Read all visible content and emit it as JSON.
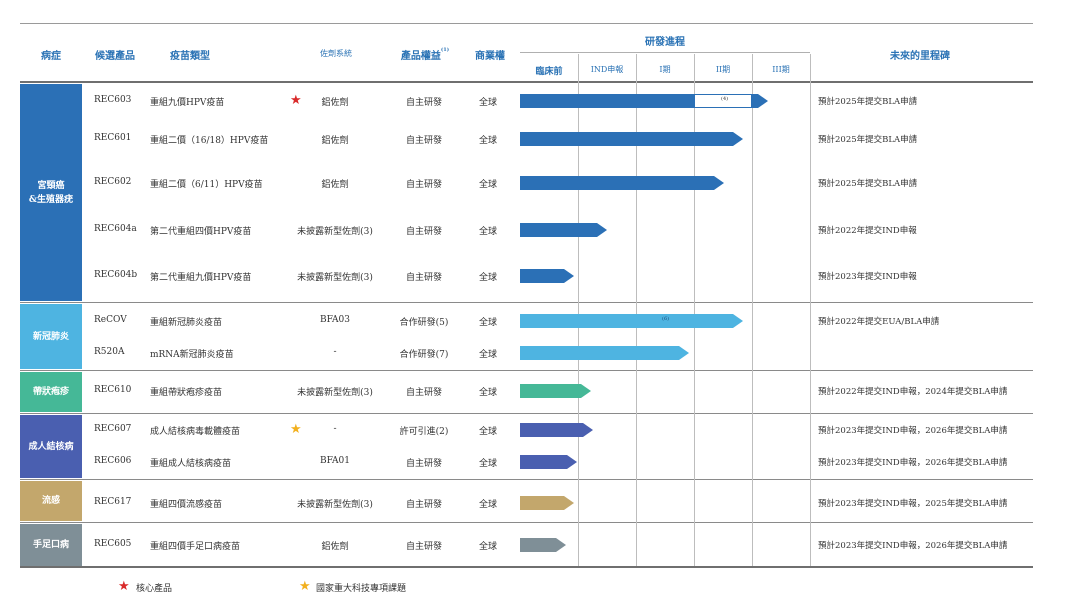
{
  "header": {
    "disease": "病症",
    "candidate": "候選產品",
    "vaccine_type": "疫苗類型",
    "adjuvant": "佐劑系統",
    "rights": "產品權益",
    "rights_note": "(1)",
    "commercial": "商業權",
    "progress": "研發進程",
    "milestone": "未來的里程碑",
    "stages": [
      "臨床前",
      "IND申報",
      "I期",
      "II期",
      "III期"
    ]
  },
  "categories": [
    {
      "name": "宮頸癌\n&生殖器疣",
      "color": "#2b70b6"
    },
    {
      "name": "新冠肺炎",
      "color": "#4eb4e1"
    },
    {
      "name": "帶狀疱疹",
      "color": "#45b897"
    },
    {
      "name": "成人結核病",
      "color": "#4a5fb0"
    },
    {
      "name": "流感",
      "color": "#c3a76c"
    },
    {
      "name": "手足口病",
      "color": "#7f8f97"
    }
  ],
  "rows": [
    {
      "code": "REC603",
      "type": "重組九價HPV疫苗",
      "adjuvant": "鋁佐劑",
      "rights": "自主研發",
      "commercial": "全球",
      "milestone": "預計2025年提交BLA申請",
      "star": "red",
      "inner_label": "(4)"
    },
    {
      "code": "REC601",
      "type": "重組二價（16/18）HPV疫苗",
      "adjuvant": "鋁佐劑",
      "rights": "自主研發",
      "commercial": "全球",
      "milestone": "預計2025年提交BLA申請"
    },
    {
      "code": "REC602",
      "type": "重組二價（6/11）HPV疫苗",
      "adjuvant": "鋁佐劑",
      "rights": "自主研發",
      "commercial": "全球",
      "milestone": "預計2025年提交BLA申請"
    },
    {
      "code": "REC604a",
      "type": "第二代重組四價HPV疫苗",
      "adjuvant": "未披露新型佐劑(3)",
      "rights": "自主研發",
      "commercial": "全球",
      "milestone": "預計2022年提交IND申報"
    },
    {
      "code": "REC604b",
      "type": "第二代重組九價HPV疫苗",
      "adjuvant": "未披露新型佐劑(3)",
      "rights": "自主研發",
      "commercial": "全球",
      "milestone": "預計2023年提交IND申報"
    },
    {
      "code": "ReCOV",
      "type": "重組新冠肺炎疫苗",
      "adjuvant": "BFA03",
      "rights": "合作研發(5)",
      "commercial": "全球",
      "milestone": "預計2022年提交EUA/BLA申請",
      "inner_label": "(6)"
    },
    {
      "code": "R520A",
      "type": "mRNA新冠肺炎疫苗",
      "adjuvant": "-",
      "rights": "合作研發(7)",
      "commercial": "全球",
      "milestone": ""
    },
    {
      "code": "REC610",
      "type": "重組帶狀疱疹疫苗",
      "adjuvant": "未披露新型佐劑(3)",
      "rights": "自主研發",
      "commercial": "全球",
      "milestone": "預計2022年提交IND申報，2024年提交BLA申請"
    },
    {
      "code": "REC607",
      "type": "成人結核病毒載體疫苗",
      "adjuvant": "-",
      "rights": "許可引進(2)",
      "commercial": "全球",
      "milestone": "預計2023年提交IND申報，2026年提交BLA申請",
      "star": "gold"
    },
    {
      "code": "REC606",
      "type": "重組成人結核病疫苗",
      "adjuvant": "BFA01",
      "rights": "自主研發",
      "commercial": "全球",
      "milestone": "預計2023年提交IND申報，2026年提交BLA申請"
    },
    {
      "code": "REC617",
      "type": "重組四價流感疫苗",
      "adjuvant": "未披露新型佐劑(3)",
      "rights": "自主研發",
      "commercial": "全球",
      "milestone": "預計2023年提交IND申報，2025年提交BLA申請"
    },
    {
      "code": "REC605",
      "type": "重組四價手足口病疫苗",
      "adjuvant": "鋁佐劑",
      "rights": "自主研發",
      "commercial": "全球",
      "milestone": "預計2023年提交IND申報，2026年提交BLA申請"
    }
  ],
  "progress": [
    0.91,
    0.82,
    0.75,
    0.32,
    0.2,
    0.82,
    0.62,
    0.26,
    0.27,
    0.21,
    0.2,
    0.17
  ],
  "legend": {
    "core": "核心產品",
    "national": "國家重大科技專項課題"
  },
  "colors": {
    "header_text": "#2b73b5",
    "star_red": "#d92a2a",
    "star_gold": "#f2b01e"
  }
}
